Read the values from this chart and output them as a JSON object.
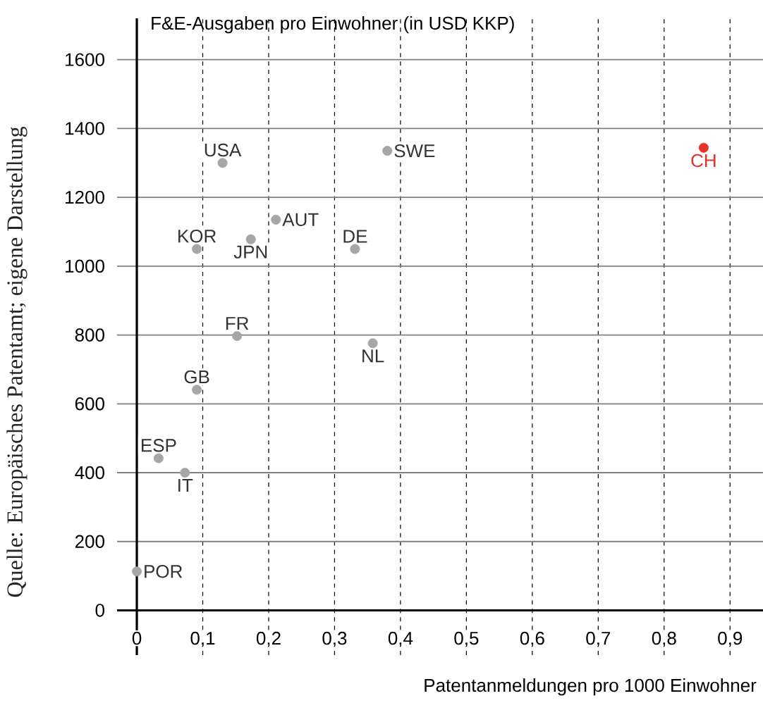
{
  "chart_data": {
    "type": "scatter",
    "ylabel": "F&E-Ausgaben pro Einwohner (in USD KKP)",
    "xlabel": "Patentanmeldungen pro 1000 Einwohner",
    "series": [
      {
        "color": "#a6a6a6",
        "x": [
          0.13,
          0.38,
          0.211,
          0.091,
          0.173,
          0.331,
          0.152,
          0.358,
          0.091,
          0.033,
          0.073,
          0.0
        ],
        "values": [
          1300,
          1335,
          1135,
          1050,
          1078,
          1050,
          797,
          776,
          641,
          442,
          400,
          113
        ]
      },
      {
        "color": "#e8302a",
        "x": [
          0.86
        ],
        "values": [
          1344
        ]
      }
    ],
    "marker": "circle",
    "grid": true,
    "xlim": [
      -0.03,
      0.95
    ],
    "ylim": [
      -130,
      1720
    ],
    "xticks": [
      0,
      {
        "value": 0.1,
        "label": "0,1"
      },
      {
        "value": 0.2,
        "label": "0,2"
      },
      {
        "value": 0.3,
        "label": "0,3"
      },
      {
        "value": 0.4,
        "label": "0,4"
      },
      {
        "value": 0.5,
        "label": "0,5"
      },
      {
        "value": 0.6,
        "label": "0,6"
      },
      {
        "value": 0.7,
        "label": "0,7"
      },
      {
        "value": 0.8,
        "label": "0,8"
      },
      {
        "value": 0.9,
        "label": "0,9"
      }
    ],
    "yticks": [
      0,
      200,
      400,
      600,
      800,
      1000,
      1200,
      1400,
      1600
    ],
    "annotations": [
      {
        "text": "USA",
        "x": 0.13,
        "y": 1300
      },
      {
        "text": "SWE",
        "x": 0.38,
        "y": 1335
      },
      {
        "text": "CH",
        "x": 0.86,
        "y": 1344
      },
      {
        "text": "AUT",
        "x": 0.211,
        "y": 1135
      },
      {
        "text": "KOR",
        "x": 0.091,
        "y": 1050
      },
      {
        "text": "JPN",
        "x": 0.173,
        "y": 1078
      },
      {
        "text": "DE",
        "x": 0.331,
        "y": 1050
      },
      {
        "text": "FR",
        "x": 0.152,
        "y": 797
      },
      {
        "text": "NL",
        "x": 0.358,
        "y": 776
      },
      {
        "text": "GB",
        "x": 0.091,
        "y": 641
      },
      {
        "text": "ESP",
        "x": 0.033,
        "y": 442
      },
      {
        "text": "IT",
        "x": 0.073,
        "y": 400
      },
      {
        "text": "POR",
        "x": 0.0,
        "y": 113
      },
      "Quelle: Europäisches Patentamt; eigene Darstellung"
    ]
  }
}
